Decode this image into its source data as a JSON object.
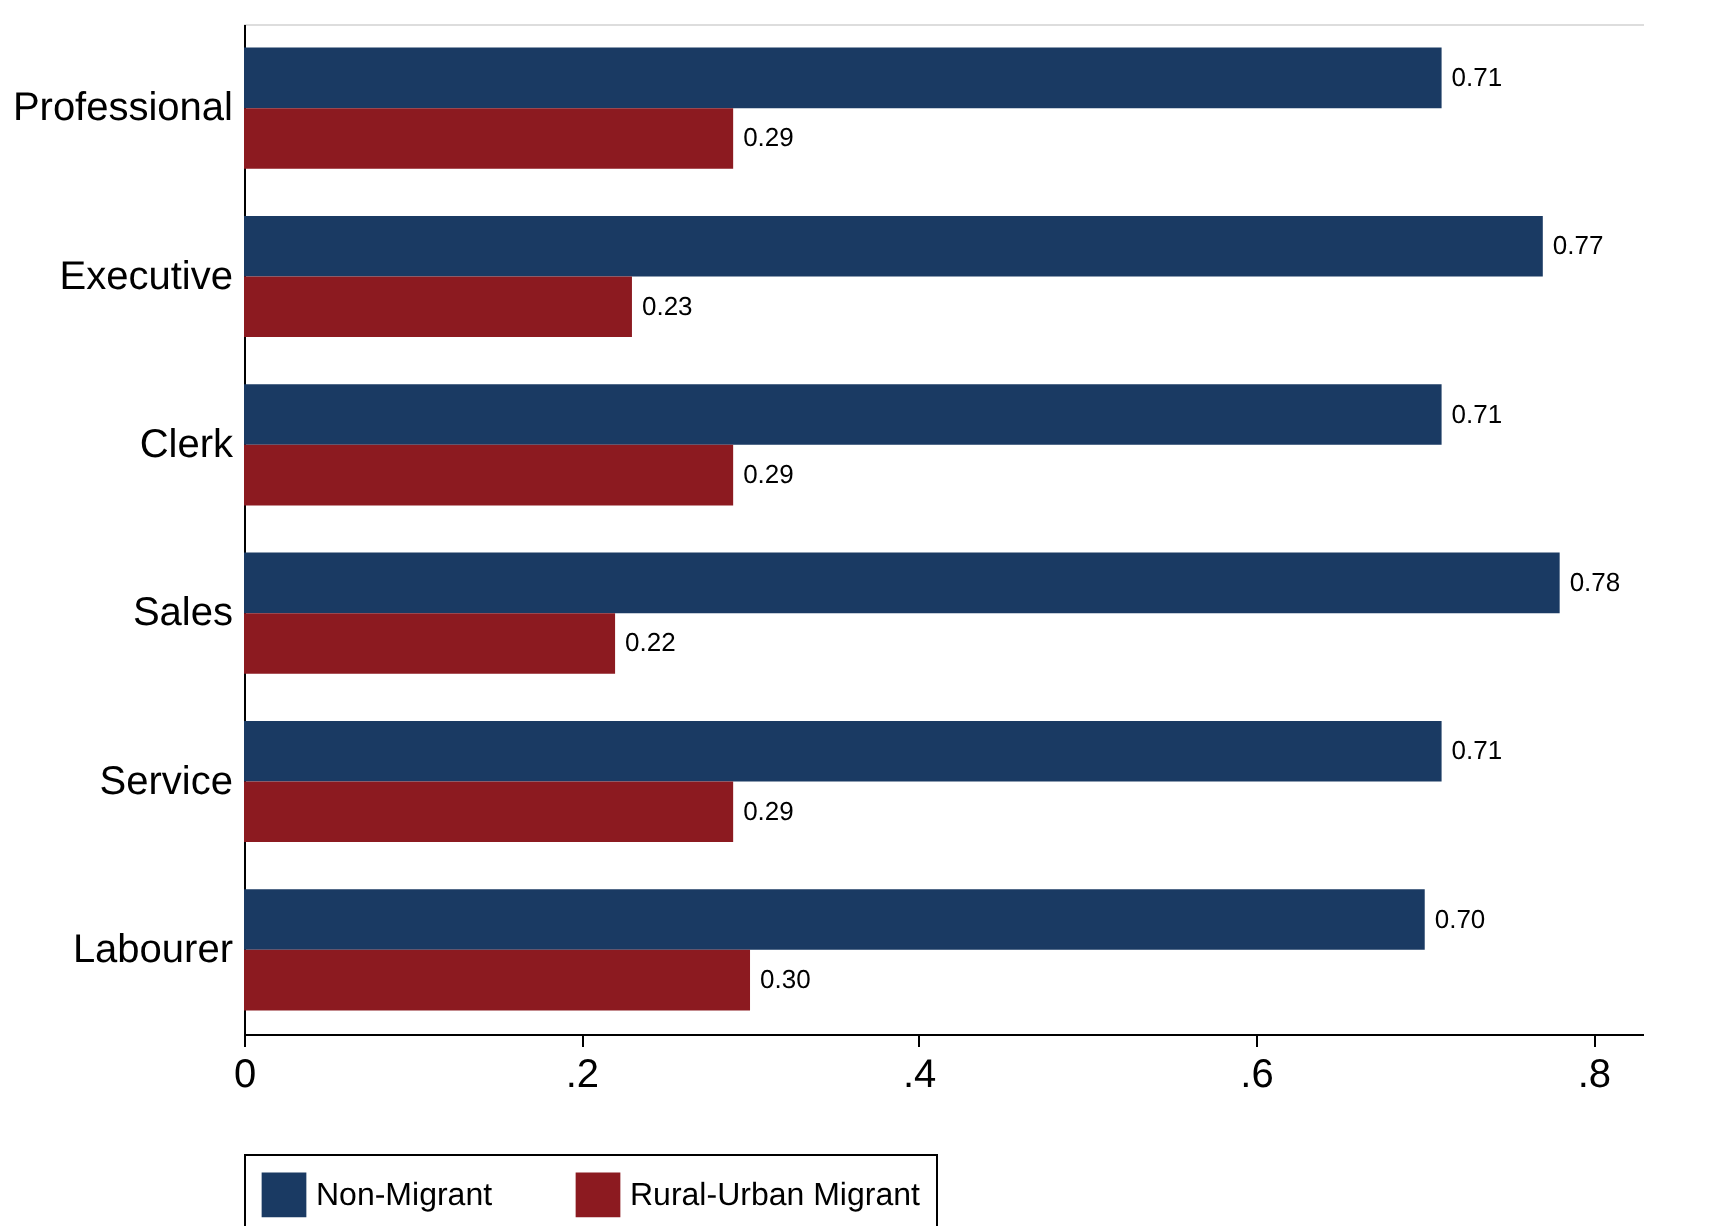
{
  "chart_data": {
    "type": "bar",
    "orientation": "horizontal",
    "categories": [
      "Professional",
      "Executive",
      "Clerk",
      "Sales",
      "Service",
      "Labourer"
    ],
    "series": [
      {
        "name": "Non-Migrant",
        "color": "#1a3a63",
        "values": [
          0.71,
          0.77,
          0.71,
          0.78,
          0.71,
          0.7
        ],
        "value_labels": [
          "0.71",
          "0.77",
          "0.71",
          "0.78",
          "0.71",
          "0.70"
        ]
      },
      {
        "name": "Rural-Urban Migrant",
        "color": "#8c1a20",
        "values": [
          0.29,
          0.23,
          0.29,
          0.22,
          0.29,
          0.3
        ],
        "value_labels": [
          "0.29",
          "0.23",
          "0.29",
          "0.22",
          "0.29",
          "0.30"
        ]
      }
    ],
    "xlim": [
      0,
      0.83
    ],
    "xticks": [
      0,
      {
        "value": 0.2,
        "label": ".2"
      },
      {
        "value": 0.4,
        "label": ".4"
      },
      {
        "value": 0.6,
        "label": ".6"
      },
      {
        "value": 0.8,
        "label": ".8"
      }
    ],
    "grid": false,
    "legend": "bottom"
  }
}
